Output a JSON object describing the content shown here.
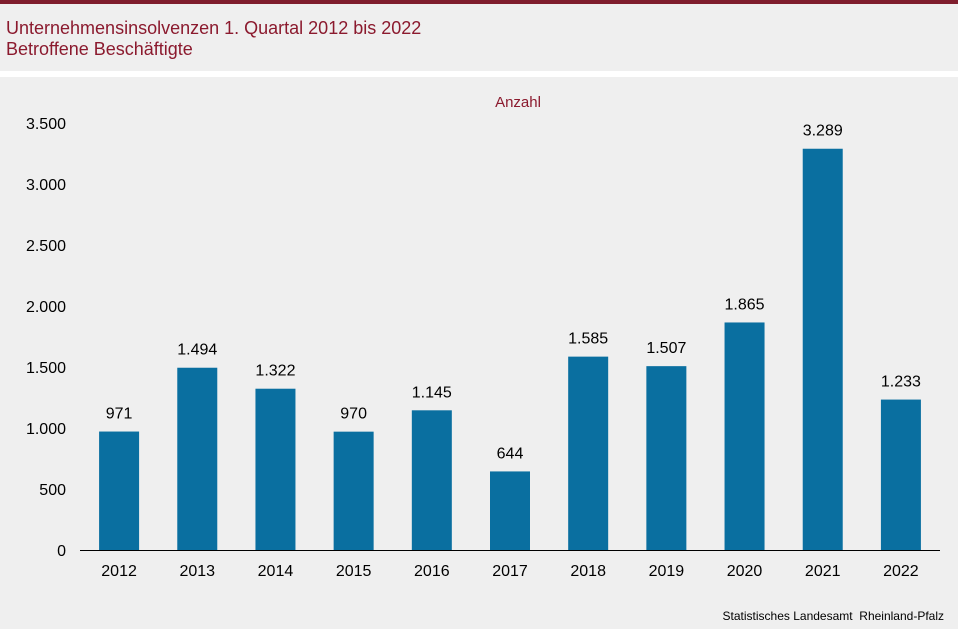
{
  "header": {
    "title": "Unternehmensinsolvenzen 1. Quartal 2012 bis 2022",
    "subtitle": "Betroffene Beschäftigte"
  },
  "footer": {
    "source": "Statistisches Landesamt  Rheinland-Pfalz"
  },
  "colors": {
    "bar": "#0a6fa0",
    "accent": "#8b1a2e"
  },
  "chart_data": {
    "type": "bar",
    "title": "",
    "unit_label": "Anzahl",
    "xlabel": "",
    "ylabel": "",
    "categories": [
      "2012",
      "2013",
      "2014",
      "2015",
      "2016",
      "2017",
      "2018",
      "2019",
      "2020",
      "2021",
      "2022"
    ],
    "values": [
      971,
      1494,
      1322,
      970,
      1145,
      644,
      1585,
      1507,
      1865,
      3289,
      1233
    ],
    "value_labels": [
      "971",
      "1.494",
      "1.322",
      "970",
      "1.145",
      "644",
      "1.585",
      "1.507",
      "1.865",
      "3.289",
      "1.233"
    ],
    "ylim": [
      0,
      3500
    ],
    "yticks": [
      0,
      500,
      1000,
      1500,
      2000,
      2500,
      3000,
      3500
    ],
    "ytick_labels": [
      "0",
      "500",
      "1.000",
      "1.500",
      "2.000",
      "2.500",
      "3.000",
      "3.500"
    ],
    "grid": false,
    "legend": "none"
  }
}
